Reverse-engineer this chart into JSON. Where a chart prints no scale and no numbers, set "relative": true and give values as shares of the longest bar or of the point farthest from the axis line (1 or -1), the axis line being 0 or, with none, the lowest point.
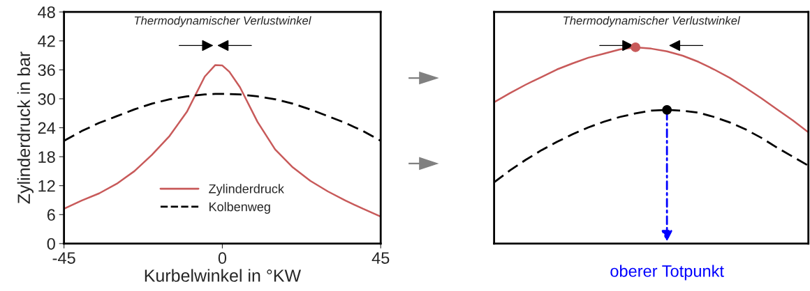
{
  "chart_data": [
    {
      "type": "line",
      "xlabel": "Kurbelwinkel in °KW",
      "ylabel": "Zylinderdruck in bar",
      "x": [
        -45,
        -40,
        -35,
        -30,
        -25,
        -20,
        -15,
        -10,
        -5,
        -2,
        0,
        2,
        5,
        10,
        15,
        20,
        25,
        30,
        35,
        40,
        45
      ],
      "series": [
        {
          "name": "Zylinderdruck",
          "color": "#c85a5a",
          "line_style": "solid",
          "values": [
            7.2,
            8.9,
            10.4,
            12.4,
            15.0,
            18.4,
            22.3,
            27.4,
            34.6,
            37.0,
            36.9,
            35.6,
            32.4,
            25.2,
            19.5,
            15.8,
            13.0,
            10.8,
            8.9,
            7.2,
            5.6
          ]
        },
        {
          "name": "Kolbenweg",
          "color": "#000000",
          "line_style": "dashed",
          "values": [
            21.3,
            23.3,
            25.0,
            26.4,
            27.8,
            29.0,
            29.9,
            30.5,
            30.9,
            31.0,
            31.0,
            31.0,
            30.9,
            30.5,
            29.9,
            29.0,
            27.8,
            26.4,
            25.0,
            23.3,
            21.3
          ]
        }
      ],
      "xlim": [
        -45,
        45
      ],
      "xticks": [
        -45,
        0,
        45
      ],
      "ylim": [
        0,
        48
      ],
      "yticks": [
        0,
        6,
        12,
        18,
        24,
        30,
        36,
        42,
        48
      ],
      "legend": "bottom",
      "grid": false,
      "annotations": [
        "Thermodynamischer Verlustwinkel"
      ]
    },
    {
      "type": "line",
      "relative": true,
      "categories": [
        null,
        null,
        null,
        null,
        null,
        null,
        null,
        null,
        null,
        null,
        null,
        null,
        null,
        null,
        null,
        null,
        null,
        null,
        null,
        null,
        null
      ],
      "series": [
        {
          "color": "#c85a5a",
          "line_style": "solid",
          "values": [
            0.72,
            0.766,
            0.809,
            0.848,
            0.887,
            0.918,
            0.947,
            0.968,
            0.989,
            1.0,
            0.993,
            0.979,
            0.957,
            0.926,
            0.887,
            0.844,
            0.794,
            0.741,
            0.684,
            0.628,
            0.567
          ]
        },
        {
          "color": "#000000",
          "line_style": "dashed",
          "values": [
            0.312,
            0.372,
            0.426,
            0.475,
            0.518,
            0.557,
            0.592,
            0.621,
            0.645,
            0.663,
            0.677,
            0.681,
            0.677,
            0.667,
            0.645,
            0.617,
            0.582,
            0.539,
            0.489,
            0.443,
            0.397
          ]
        }
      ],
      "grid": false,
      "annotations": [
        "Thermodynamischer Verlustwinkel",
        "oberer Totpunkt"
      ]
    }
  ]
}
